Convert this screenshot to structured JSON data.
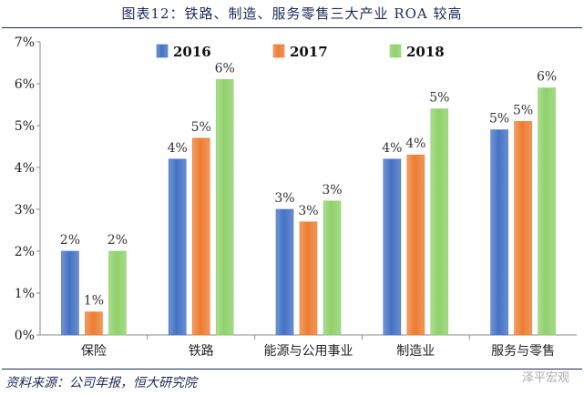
{
  "title": "图表12：铁路、制造、服务零售三大产业 ROA 较高",
  "source": "资料来源：公司年报，恒大研究院",
  "watermark": "泽平宏观",
  "chart_data": {
    "type": "bar",
    "categories": [
      "保险",
      "铁路",
      "能源与公用事业",
      "制造业",
      "服务与零售"
    ],
    "series": [
      {
        "name": "2016",
        "values": [
          2.0,
          4.2,
          3.0,
          4.2,
          4.9
        ],
        "labels": [
          "2%",
          "4%",
          "3%",
          "4%",
          "5%"
        ],
        "color": "#4472c4"
      },
      {
        "name": "2017",
        "values": [
          0.55,
          4.7,
          2.7,
          4.3,
          5.1
        ],
        "labels": [
          "1%",
          "5%",
          "3%",
          "4%",
          "5%"
        ],
        "color": "#ed7d31"
      },
      {
        "name": "2018",
        "values": [
          2.0,
          6.1,
          3.2,
          5.4,
          5.9
        ],
        "labels": [
          "2%",
          "6%",
          "3%",
          "5%",
          "6%"
        ],
        "color": "#8fd16a"
      }
    ],
    "yticks": [
      "0%",
      "1%",
      "2%",
      "3%",
      "4%",
      "5%",
      "6%",
      "7%"
    ],
    "ylim": [
      0,
      7
    ],
    "legend_position": "top",
    "grid": false
  }
}
